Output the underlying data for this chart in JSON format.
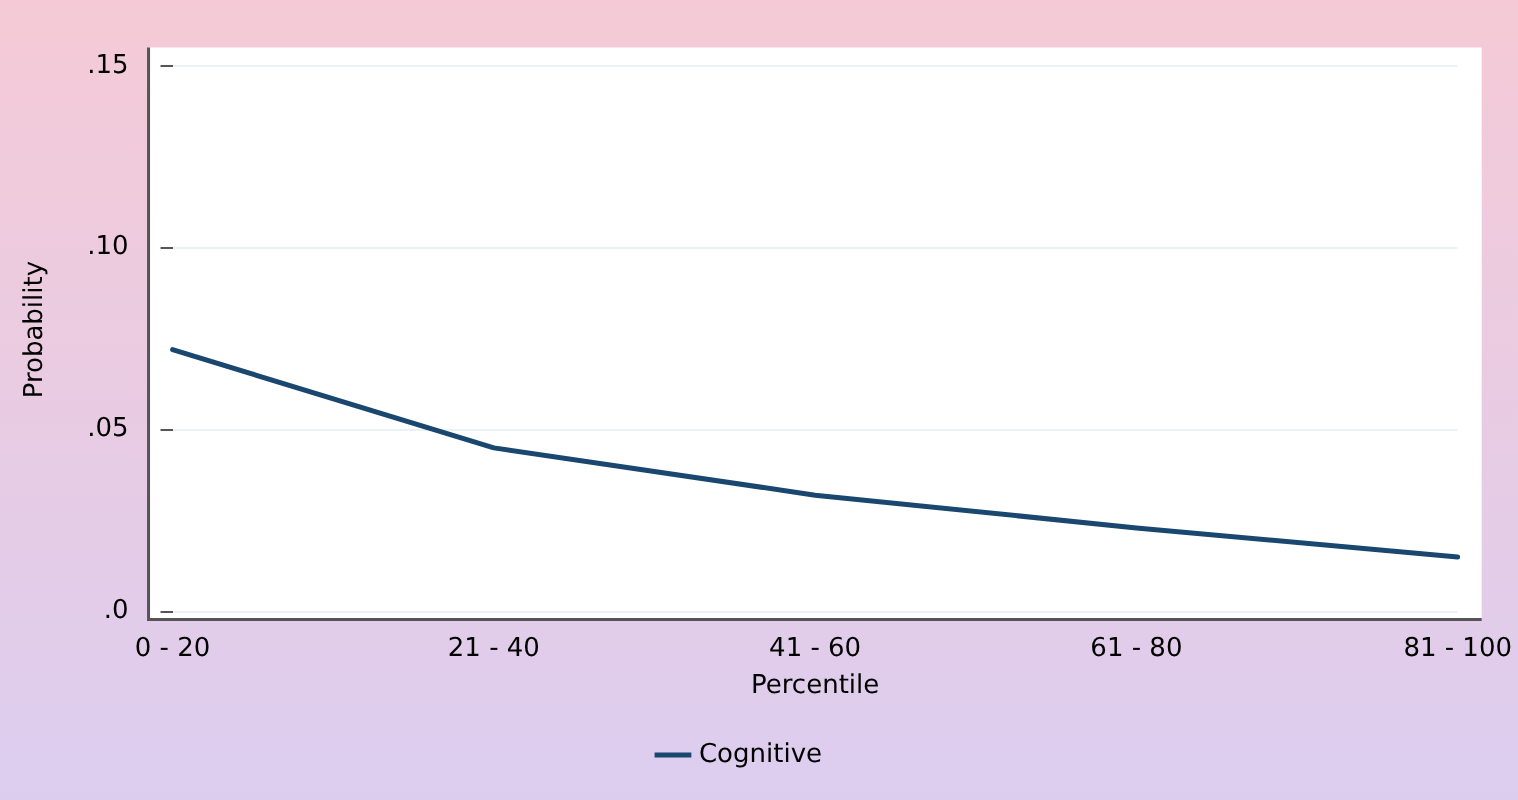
{
  "chart_data": {
    "type": "line",
    "xlabel": "Percentile",
    "ylabel": "Probability",
    "categories": [
      "0 - 20",
      "21 - 40",
      "41 - 60",
      "61 - 80",
      "81 - 100"
    ],
    "series": [
      {
        "name": "Cognitive",
        "color": "#1a476f",
        "values": [
          0.072,
          0.045,
          0.032,
          0.023,
          0.015
        ]
      }
    ],
    "ylim": [
      0,
      0.155
    ],
    "yticks": [
      {
        "value": 0,
        "label": ".0"
      },
      {
        "value": 0.05,
        "label": ".05"
      },
      {
        "value": 0.1,
        "label": ".10"
      },
      {
        "value": 0.15,
        "label": ".15"
      }
    ],
    "grid": "y",
    "legend": "bottom",
    "marker": "none",
    "line_style": "solid"
  }
}
